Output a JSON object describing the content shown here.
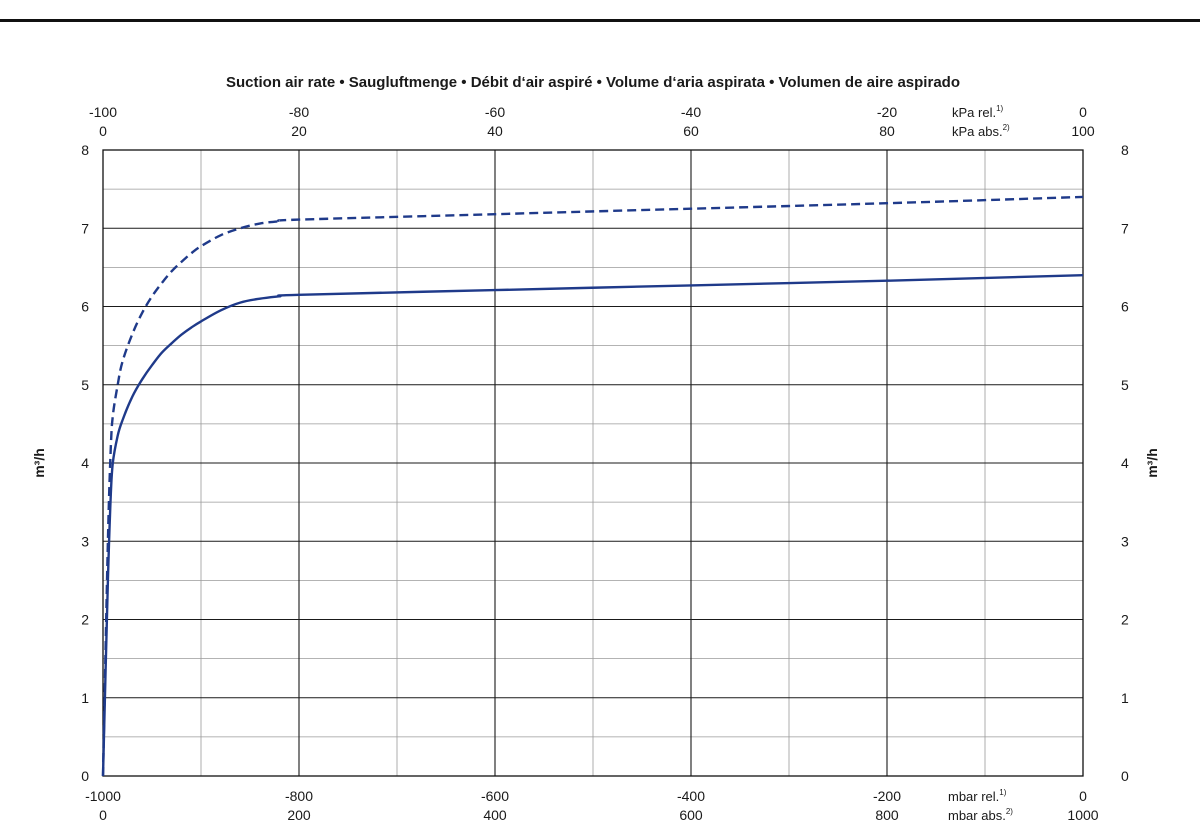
{
  "chart_data": {
    "type": "line",
    "title": "Suction air rate  •  Saugluftmenge  •  Débit d‘air aspiré  •  Volume d‘aria aspirata  •  Volumen de aire aspirado",
    "ylabel": "m³/h",
    "ylim": [
      0,
      8
    ],
    "y_ticks": [
      "0",
      "1",
      "2",
      "3",
      "4",
      "5",
      "6",
      "7",
      "8"
    ],
    "xlim": [
      -1000,
      0
    ],
    "bottom_axis": {
      "rel_ticks": [
        "-1000",
        "-800",
        "-600",
        "-400",
        "-200",
        "0"
      ],
      "abs_ticks": [
        "0",
        "200",
        "400",
        "600",
        "800",
        "1000"
      ],
      "rel_unit": "mbar rel.",
      "rel_unit_sup": "1)",
      "abs_unit": "mbar abs.",
      "abs_unit_sup": "2)"
    },
    "top_axis": {
      "rel_ticks": [
        "-100",
        "-80",
        "-60",
        "-40",
        "-20",
        "0"
      ],
      "abs_ticks": [
        "0",
        "20",
        "40",
        "60",
        "80",
        "100"
      ],
      "rel_unit": "kPa rel.",
      "rel_unit_sup": "1)",
      "abs_unit": "kPa abs.",
      "abs_unit_sup": "2)"
    },
    "grid": true,
    "series": [
      {
        "style": "solid",
        "color": "#1f3a8a",
        "x": [
          -1000,
          -995,
          -992,
          -990,
          -985,
          -980,
          -970,
          -960,
          -950,
          -940,
          -930,
          -920,
          -910,
          -900,
          -880,
          -860,
          -840,
          -820,
          -800,
          -600,
          -400,
          -200,
          0
        ],
        "y": [
          0,
          2.5,
          3.6,
          4.0,
          4.35,
          4.55,
          4.85,
          5.07,
          5.25,
          5.41,
          5.53,
          5.64,
          5.73,
          5.81,
          5.95,
          6.05,
          6.1,
          6.13,
          6.15,
          6.21,
          6.27,
          6.33,
          6.4
        ]
      },
      {
        "style": "dashed",
        "color": "#1f3a8a",
        "x": [
          -1000,
          -995,
          -992,
          -990,
          -985,
          -980,
          -970,
          -960,
          -950,
          -940,
          -930,
          -920,
          -910,
          -900,
          -880,
          -860,
          -840,
          -820,
          -800,
          -600,
          -400,
          -200,
          0
        ],
        "y": [
          0,
          3.0,
          4.2,
          4.6,
          5.0,
          5.3,
          5.65,
          5.92,
          6.13,
          6.3,
          6.45,
          6.57,
          6.68,
          6.77,
          6.91,
          7.0,
          7.06,
          7.09,
          7.11,
          7.18,
          7.25,
          7.32,
          7.4
        ]
      }
    ]
  }
}
